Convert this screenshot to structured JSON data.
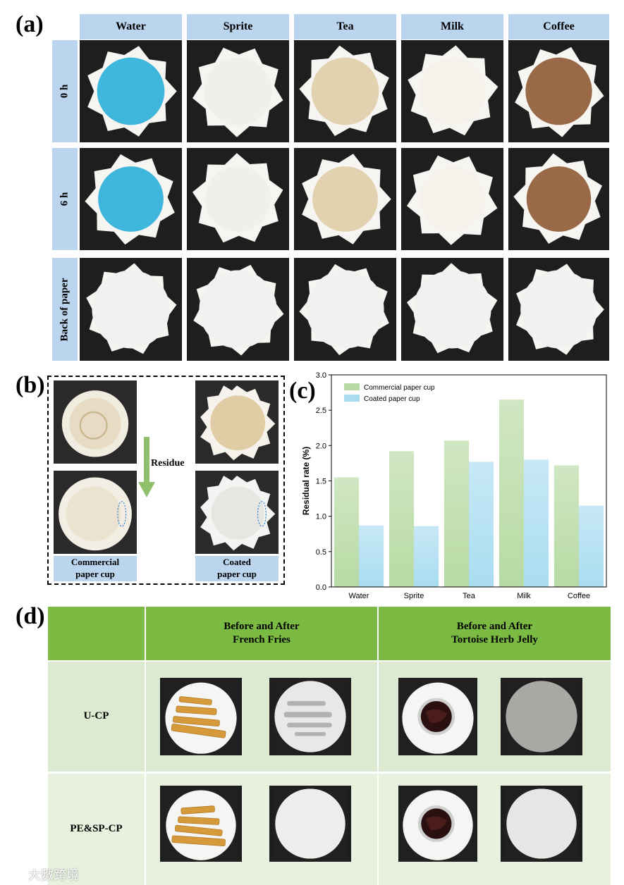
{
  "panel_a": {
    "label": "(a)",
    "columns": [
      "Water",
      "Sprite",
      "Tea",
      "Milk",
      "Coffee"
    ],
    "rows": [
      "0 h",
      "6 h",
      "Back of paper"
    ],
    "liquid_colors": [
      "#3fb6dc",
      "#f0efea",
      "#e3d2b0",
      "#f4f2ea",
      "#9a6a48"
    ]
  },
  "panel_b": {
    "label": "(b)",
    "arrow_label": "Residue",
    "caption_left": "Commercial paper cup",
    "caption_right": "Coated paper cup"
  },
  "panel_c": {
    "label": "(c)"
  },
  "chart_data": {
    "type": "bar",
    "categories": [
      "Water",
      "Sprite",
      "Tea",
      "Milk",
      "Coffee"
    ],
    "series": [
      {
        "name": "Commercial paper cup",
        "values": [
          1.55,
          1.92,
          2.07,
          2.65,
          1.72
        ],
        "color": "#b7daa3"
      },
      {
        "name": "Coated paper cup",
        "values": [
          0.87,
          0.86,
          1.77,
          1.8,
          1.15
        ],
        "color": "#a9dcf1"
      }
    ],
    "ylabel": "Residual rate (%)",
    "xlabel": "",
    "ylim": [
      0,
      3.0
    ],
    "yticks": [
      "0.0",
      "0.5",
      "1.0",
      "1.5",
      "2.0",
      "2.5",
      "3.0"
    ],
    "legend": "top-left",
    "grid": false
  },
  "panel_d": {
    "label": "(d)",
    "header_fries": "Before and After French Fries",
    "header_jelly": "Before and After Tortoise Herb Jelly",
    "row1": "U-CP",
    "row2": "PE&SP-CP"
  },
  "watermark": "大數跨境"
}
